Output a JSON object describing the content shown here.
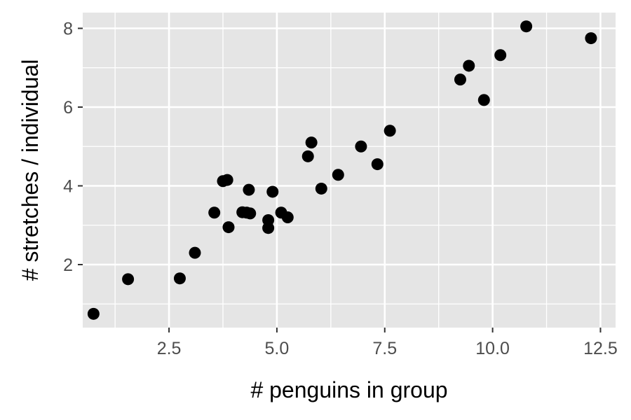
{
  "chart_data": {
    "type": "scatter",
    "title": "",
    "xlabel": "# penguins in group",
    "ylabel": "# stretches / individual",
    "xlim": [
      0.5,
      12.85
    ],
    "ylim": [
      0.4,
      8.4
    ],
    "x_ticks": [
      2.5,
      5.0,
      7.5,
      10.0,
      12.5
    ],
    "x_tick_labels": [
      "2.5",
      "5.0",
      "7.5",
      "10.0",
      "12.5"
    ],
    "y_ticks": [
      2,
      4,
      6,
      8
    ],
    "y_tick_labels": [
      "2",
      "4",
      "6",
      "8"
    ],
    "grid": true,
    "legend": "none",
    "colors": {
      "panel": "#e5e5e5",
      "grid": "#ffffff",
      "point": "#000000",
      "tick": "#4d4d4d"
    },
    "points": [
      {
        "x": 0.75,
        "y": 0.75
      },
      {
        "x": 1.55,
        "y": 1.63
      },
      {
        "x": 2.75,
        "y": 1.65
      },
      {
        "x": 3.1,
        "y": 2.3
      },
      {
        "x": 3.55,
        "y": 3.32
      },
      {
        "x": 3.75,
        "y": 4.12
      },
      {
        "x": 3.85,
        "y": 4.15
      },
      {
        "x": 3.88,
        "y": 2.95
      },
      {
        "x": 4.2,
        "y": 3.33
      },
      {
        "x": 4.3,
        "y": 3.32
      },
      {
        "x": 4.35,
        "y": 3.9
      },
      {
        "x": 4.38,
        "y": 3.3
      },
      {
        "x": 4.8,
        "y": 3.13
      },
      {
        "x": 4.8,
        "y": 2.93
      },
      {
        "x": 4.9,
        "y": 3.85
      },
      {
        "x": 5.1,
        "y": 3.32
      },
      {
        "x": 5.25,
        "y": 3.2
      },
      {
        "x": 5.72,
        "y": 4.75
      },
      {
        "x": 5.8,
        "y": 5.1
      },
      {
        "x": 6.03,
        "y": 3.93
      },
      {
        "x": 6.42,
        "y": 4.28
      },
      {
        "x": 6.95,
        "y": 5.0
      },
      {
        "x": 7.33,
        "y": 4.55
      },
      {
        "x": 7.62,
        "y": 5.4
      },
      {
        "x": 9.25,
        "y": 6.7
      },
      {
        "x": 9.45,
        "y": 7.05
      },
      {
        "x": 9.8,
        "y": 6.18
      },
      {
        "x": 10.18,
        "y": 7.32
      },
      {
        "x": 10.78,
        "y": 8.05
      },
      {
        "x": 12.28,
        "y": 7.75
      }
    ]
  }
}
